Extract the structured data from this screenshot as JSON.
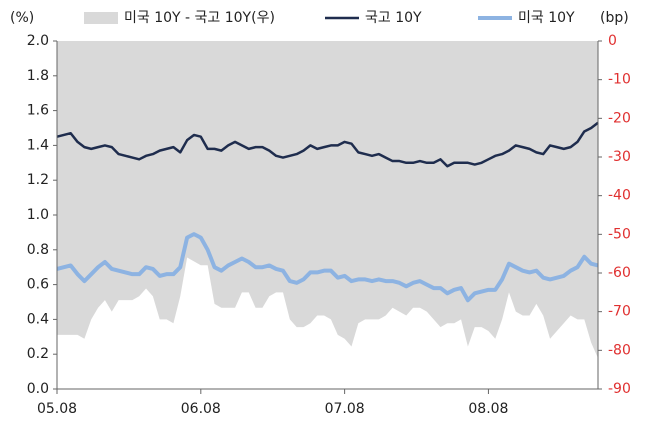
{
  "chart_data": {
    "type": "line",
    "y_label": "(%)",
    "y2_label": "(bp)",
    "categories": [
      "05.08",
      null,
      null,
      null,
      null,
      null,
      null,
      null,
      null,
      null,
      null,
      null,
      null,
      null,
      null,
      null,
      null,
      null,
      null,
      null,
      null,
      "06.08",
      null,
      null,
      null,
      null,
      null,
      null,
      null,
      null,
      null,
      null,
      null,
      null,
      null,
      null,
      null,
      null,
      null,
      null,
      null,
      null,
      "07.08",
      null,
      null,
      null,
      null,
      null,
      null,
      null,
      null,
      null,
      null,
      null,
      null,
      null,
      null,
      null,
      null,
      null,
      null,
      null,
      null,
      "08.08",
      null,
      null,
      null,
      null,
      null,
      null,
      null,
      null,
      null,
      null,
      null,
      null,
      null,
      null,
      null,
      null
    ],
    "series": [
      {
        "name": "미국 10Y - 국고 10Y(우)",
        "type": "area",
        "axis": "y2",
        "color": "#d9d9d9",
        "values": [
          -76,
          -76,
          -76,
          -76,
          -77,
          -72,
          -69,
          -67,
          -70,
          -67,
          -67,
          -67,
          -66,
          -64,
          -66,
          -72,
          -72,
          -73,
          -66,
          -56,
          -57,
          -58,
          -58,
          -68,
          -69,
          -69,
          -69,
          -65,
          -65,
          -69,
          -69,
          -66,
          -65,
          -65,
          -72,
          -74,
          -74,
          -73,
          -71,
          -71,
          -72,
          -76,
          -77,
          -79,
          -73,
          -72,
          -72,
          -72,
          -71,
          -69,
          -70,
          -71,
          -69,
          -69,
          -70,
          -72,
          -74,
          -73,
          -73,
          -72,
          -79,
          -74,
          -74,
          -75,
          -77,
          -72,
          -65,
          -70,
          -71,
          -71,
          -68,
          -71,
          -77,
          -75,
          -73,
          -71,
          -72,
          -72,
          -78,
          -82
        ]
      },
      {
        "name": "국고 10Y",
        "type": "line",
        "color": "#1f2d4e",
        "values": [
          1.45,
          1.46,
          1.47,
          1.42,
          1.39,
          1.38,
          1.39,
          1.4,
          1.39,
          1.35,
          1.34,
          1.33,
          1.32,
          1.34,
          1.35,
          1.37,
          1.38,
          1.39,
          1.36,
          1.43,
          1.46,
          1.45,
          1.38,
          1.38,
          1.37,
          1.4,
          1.42,
          1.4,
          1.38,
          1.39,
          1.39,
          1.37,
          1.34,
          1.33,
          1.34,
          1.35,
          1.37,
          1.4,
          1.38,
          1.39,
          1.4,
          1.4,
          1.42,
          1.41,
          1.36,
          1.35,
          1.34,
          1.35,
          1.33,
          1.31,
          1.31,
          1.3,
          1.3,
          1.31,
          1.3,
          1.3,
          1.32,
          1.28,
          1.3,
          1.3,
          1.3,
          1.29,
          1.3,
          1.32,
          1.34,
          1.35,
          1.37,
          1.4,
          1.39,
          1.38,
          1.36,
          1.35,
          1.4,
          1.39,
          1.38,
          1.39,
          1.42,
          1.48,
          1.5,
          1.53
        ]
      },
      {
        "name": "미국 10Y",
        "type": "line",
        "color": "#8db3e2",
        "values": [
          0.69,
          0.7,
          0.71,
          0.66,
          0.62,
          0.66,
          0.7,
          0.73,
          0.69,
          0.68,
          0.67,
          0.66,
          0.66,
          0.7,
          0.69,
          0.65,
          0.66,
          0.66,
          0.7,
          0.87,
          0.89,
          0.87,
          0.8,
          0.7,
          0.68,
          0.71,
          0.73,
          0.75,
          0.73,
          0.7,
          0.7,
          0.71,
          0.69,
          0.68,
          0.62,
          0.61,
          0.63,
          0.67,
          0.67,
          0.68,
          0.68,
          0.64,
          0.65,
          0.62,
          0.63,
          0.63,
          0.62,
          0.63,
          0.62,
          0.62,
          0.61,
          0.59,
          0.61,
          0.62,
          0.6,
          0.58,
          0.58,
          0.55,
          0.57,
          0.58,
          0.51,
          0.55,
          0.56,
          0.57,
          0.57,
          0.63,
          0.72,
          0.7,
          0.68,
          0.67,
          0.68,
          0.64,
          0.63,
          0.64,
          0.65,
          0.68,
          0.7,
          0.76,
          0.72,
          0.71
        ]
      }
    ],
    "ylim": [
      0,
      2
    ],
    "yticks": [
      {
        "value": 0,
        "label": "0.0"
      },
      0.2,
      0.4,
      0.6,
      0.8,
      {
        "value": 1,
        "label": "1.0"
      },
      1.2,
      1.4,
      1.6,
      1.8,
      {
        "value": 2,
        "label": "2.0"
      }
    ],
    "y2lim": [
      -90,
      0
    ],
    "y2ticks": [
      0,
      -10,
      -20,
      -30,
      -40,
      -50,
      -60,
      -70,
      -80,
      -90
    ],
    "y2_color": "#e03030",
    "legend": "top"
  }
}
